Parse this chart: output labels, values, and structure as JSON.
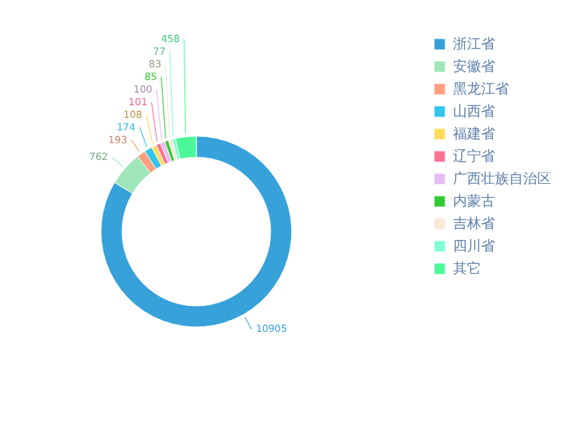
{
  "chart_data": {
    "type": "donut",
    "categories": [
      "浙江省",
      "安徽省",
      "黑龙江省",
      "山西省",
      "福建省",
      "辽宁省",
      "广西壮族自治区",
      "内蒙古",
      "吉林省",
      "四川省",
      "其它"
    ],
    "values": [
      10905,
      762,
      193,
      174,
      108,
      101,
      100,
      85,
      83,
      77,
      458
    ],
    "colors": [
      "#37a2da",
      "#9fe6b8",
      "#ff9f7f",
      "#32c5e9",
      "#ffdb5c",
      "#fb7293",
      "#e7bcf3",
      "#36c936",
      "#f8e8d4",
      "#80ffd4",
      "#4cf79a"
    ],
    "data_labels": true,
    "legend": "top right"
  }
}
